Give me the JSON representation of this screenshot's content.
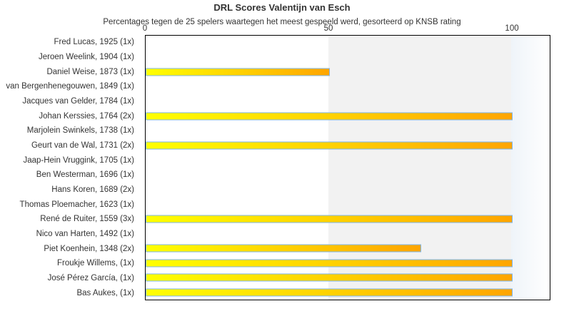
{
  "chart_data": {
    "type": "bar",
    "orientation": "horizontal",
    "title": "DRL Scores Valentijn van Esch",
    "subtitle": "Percentages tegen de 25 spelers waartegen het meest gespeeld werd, gesorteerd op KNSB rating",
    "categories": [
      "Fred Lucas, 1925 (1x)",
      "Jeroen Weelink, 1904 (1x)",
      "Daniel Weise, 1873 (1x)",
      "van Bergenhenegouwen, 1849 (1x)",
      "Jacques van Gelder, 1784 (1x)",
      "Johan Kerssies, 1764 (2x)",
      "Marjolein Swinkels, 1738 (1x)",
      "Geurt van de Wal, 1731 (2x)",
      "Jaap-Hein Vruggink, 1705 (1x)",
      "Ben Westerman, 1696 (1x)",
      "Hans Koren, 1689 (2x)",
      "Thomas Ploemacher, 1623 (1x)",
      "René de Ruiter, 1559 (3x)",
      "Nico van Harten, 1492 (1x)",
      "Piet Koenhein, 1348 (2x)",
      "Froukje Willems,  (1x)",
      "José Pérez García,  (1x)",
      "Bas Aukes,  (1x)"
    ],
    "values": [
      0,
      0,
      50,
      0,
      0,
      100,
      0,
      100,
      0,
      0,
      0,
      0,
      100,
      0,
      75,
      100,
      100,
      100
    ],
    "xlabel": "",
    "ylabel": "",
    "x_ticks": [
      0,
      50,
      100
    ],
    "xlim": [
      0,
      110.5
    ],
    "axis_position": "top",
    "grid": false,
    "legend": "none",
    "plot_bands": [
      {
        "from": 0,
        "to": 50,
        "color": "#ffffff"
      },
      {
        "from": 50,
        "to": 100,
        "color": "#f2f2f2"
      },
      {
        "from": 100,
        "to": 110.5,
        "gradient": [
          "#eff4f9",
          "#ffffff"
        ]
      }
    ],
    "bar_gradient": [
      "#ffff00",
      "#ffa500"
    ],
    "bar_border_color": "#7cb5ec",
    "text_color": "#333333",
    "frame_color": "#000000"
  }
}
